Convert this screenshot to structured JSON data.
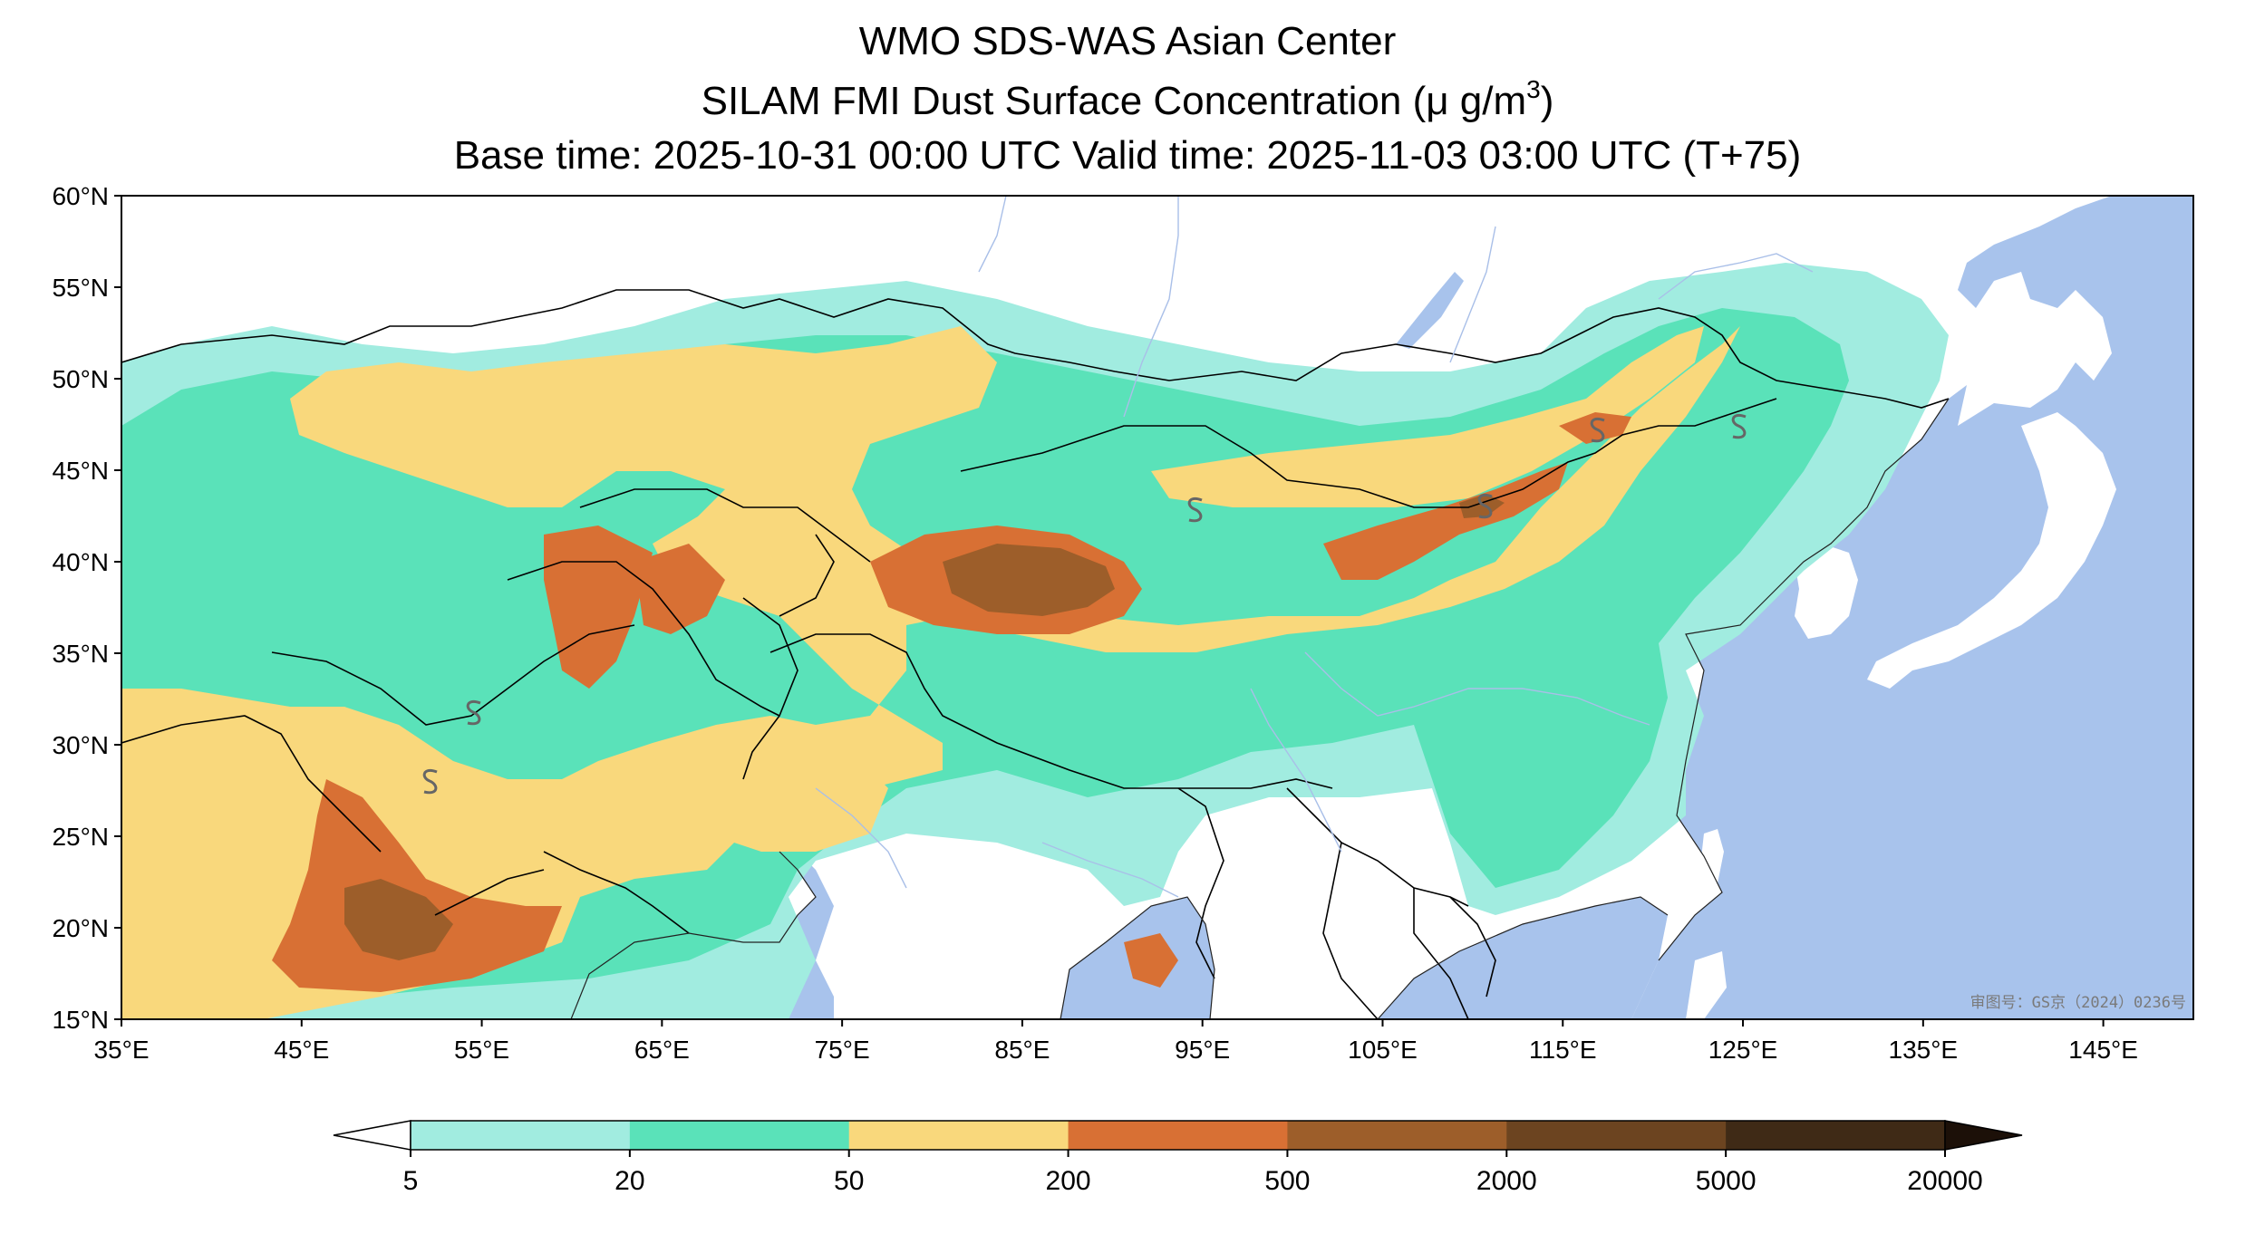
{
  "header": {
    "title_line1": "WMO SDS-WAS Asian Center",
    "title_line2_main": "SILAM FMI Dust Surface Concentration (μ g/m",
    "title_line2_sup": "3",
    "title_line2_end": ")",
    "title_line3": "Base time: 2025-10-31 00:00 UTC Valid time: 2025-11-03 03:00 UTC (T+75)"
  },
  "map": {
    "lon_range": [
      35,
      150
    ],
    "lat_range": [
      15,
      60
    ],
    "lon_ticks": [
      "35°E",
      "45°E",
      "55°E",
      "65°E",
      "75°E",
      "85°E",
      "95°E",
      "105°E",
      "115°E",
      "125°E",
      "135°E",
      "145°E"
    ],
    "lat_ticks": [
      "15°N",
      "20°N",
      "25°N",
      "30°N",
      "35°N",
      "40°N",
      "45°N",
      "50°N",
      "55°N",
      "60°N"
    ],
    "watermark": "审图号：GS京（2024）0236号",
    "colors": {
      "ocean": "#a8c3ec",
      "land": "#ffffff",
      "border": "#000000"
    }
  },
  "colorbar": {
    "labels": [
      "5",
      "20",
      "50",
      "200",
      "500",
      "2000",
      "5000",
      "20000"
    ],
    "colors": [
      "#a1ece0",
      "#5ae2b9",
      "#f9d87c",
      "#d87034",
      "#9d5e2a",
      "#6c4420",
      "#3f2a16"
    ]
  }
}
